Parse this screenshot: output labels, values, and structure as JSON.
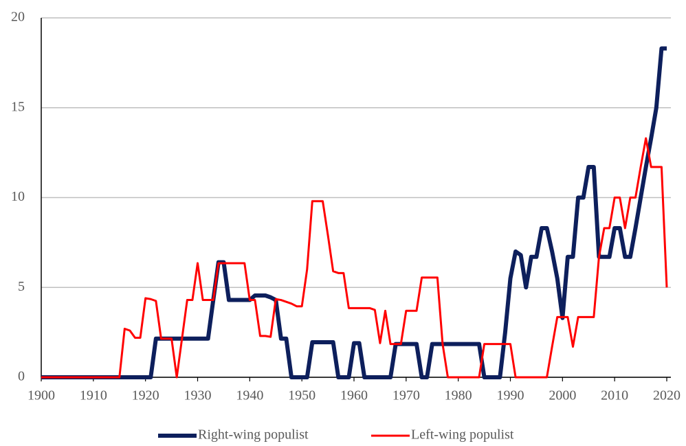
{
  "chart_data": {
    "type": "line",
    "x": [
      1900,
      1901,
      1902,
      1903,
      1904,
      1905,
      1906,
      1907,
      1908,
      1909,
      1910,
      1911,
      1912,
      1913,
      1914,
      1915,
      1916,
      1917,
      1918,
      1919,
      1920,
      1921,
      1922,
      1923,
      1924,
      1925,
      1926,
      1927,
      1928,
      1929,
      1930,
      1931,
      1932,
      1933,
      1934,
      1935,
      1936,
      1937,
      1938,
      1939,
      1940,
      1941,
      1942,
      1943,
      1944,
      1945,
      1946,
      1947,
      1948,
      1949,
      1950,
      1951,
      1952,
      1953,
      1954,
      1955,
      1956,
      1957,
      1958,
      1959,
      1960,
      1961,
      1962,
      1963,
      1964,
      1965,
      1966,
      1967,
      1968,
      1969,
      1970,
      1971,
      1972,
      1973,
      1974,
      1975,
      1976,
      1977,
      1978,
      1979,
      1980,
      1981,
      1982,
      1983,
      1984,
      1985,
      1986,
      1987,
      1988,
      1989,
      1990,
      1991,
      1992,
      1993,
      1994,
      1995,
      1996,
      1997,
      1998,
      1999,
      2000,
      2001,
      2002,
      2003,
      2004,
      2005,
      2006,
      2007,
      2008,
      2009,
      2010,
      2011,
      2012,
      2013,
      2014,
      2015,
      2016,
      2017,
      2018,
      2019,
      2020
    ],
    "series": [
      {
        "name": "Right-wing populist",
        "color": "#0d1f5c",
        "width": 6,
        "values": [
          0,
          0,
          0,
          0,
          0,
          0,
          0,
          0,
          0,
          0,
          0,
          0,
          0,
          0,
          0,
          0,
          0,
          0,
          0,
          0,
          0,
          0,
          2.15,
          2.15,
          2.15,
          2.15,
          2.15,
          2.15,
          2.15,
          2.15,
          2.15,
          2.15,
          2.15,
          4.3,
          6.4,
          6.4,
          4.3,
          4.3,
          4.3,
          4.3,
          4.3,
          4.55,
          4.55,
          4.55,
          4.45,
          4.3,
          2.15,
          2.15,
          0,
          0,
          0,
          0,
          1.95,
          1.95,
          1.95,
          1.95,
          1.95,
          0,
          0,
          0,
          1.9,
          1.9,
          0,
          0,
          0,
          0,
          0,
          0,
          1.85,
          1.85,
          1.85,
          1.85,
          1.85,
          0,
          0,
          1.85,
          1.85,
          1.85,
          1.85,
          1.85,
          1.85,
          1.85,
          1.85,
          1.85,
          1.85,
          0,
          0,
          0,
          0,
          2.5,
          5.5,
          7.0,
          6.8,
          5.0,
          6.7,
          6.7,
          8.3,
          8.3,
          7.0,
          5.5,
          3.3,
          6.7,
          6.7,
          10,
          10,
          11.7,
          11.7,
          6.7,
          6.7,
          6.7,
          8.3,
          8.3,
          6.7,
          6.7,
          8.3,
          10,
          11.7,
          13.3,
          15,
          18.3,
          18.3
        ]
      },
      {
        "name": "Left-wing populist",
        "color": "#ff0000",
        "width": 3,
        "values": [
          0,
          0,
          0,
          0,
          0,
          0,
          0,
          0,
          0,
          0,
          0,
          0,
          0,
          0,
          0,
          0,
          2.7,
          2.6,
          2.2,
          2.2,
          4.4,
          4.35,
          4.25,
          2.15,
          2.15,
          2.15,
          0,
          2.15,
          4.3,
          4.3,
          6.35,
          4.3,
          4.3,
          4.3,
          6.35,
          6.35,
          6.35,
          6.35,
          6.35,
          6.35,
          4.3,
          4.3,
          2.3,
          2.3,
          2.25,
          4.35,
          4.3,
          4.2,
          4.1,
          3.95,
          3.95,
          6.0,
          9.8,
          9.8,
          9.8,
          7.9,
          5.9,
          5.8,
          5.8,
          3.85,
          3.85,
          3.85,
          3.85,
          3.85,
          3.75,
          1.9,
          3.7,
          1.85,
          1.85,
          1.85,
          3.7,
          3.7,
          3.7,
          5.55,
          5.55,
          5.55,
          5.55,
          1.85,
          0,
          0,
          0,
          0,
          0,
          0,
          0,
          1.85,
          1.85,
          1.85,
          1.85,
          1.85,
          1.85,
          0,
          0,
          0,
          0,
          0,
          0,
          0,
          1.7,
          3.35,
          3.35,
          3.35,
          1.7,
          3.35,
          3.35,
          3.35,
          3.35,
          6.7,
          8.3,
          8.3,
          10,
          10,
          8.3,
          10,
          10,
          11.7,
          13.3,
          11.7,
          11.7,
          11.7,
          5
        ]
      }
    ],
    "xlim": [
      1900,
      2020
    ],
    "xticks": [
      1900,
      1910,
      1920,
      1930,
      1940,
      1950,
      1960,
      1970,
      1980,
      1990,
      2000,
      2010,
      2020
    ],
    "ylim": [
      0,
      20
    ],
    "yticks": [
      0,
      5,
      10,
      15,
      20
    ],
    "grid": true,
    "legend": "bottom"
  }
}
